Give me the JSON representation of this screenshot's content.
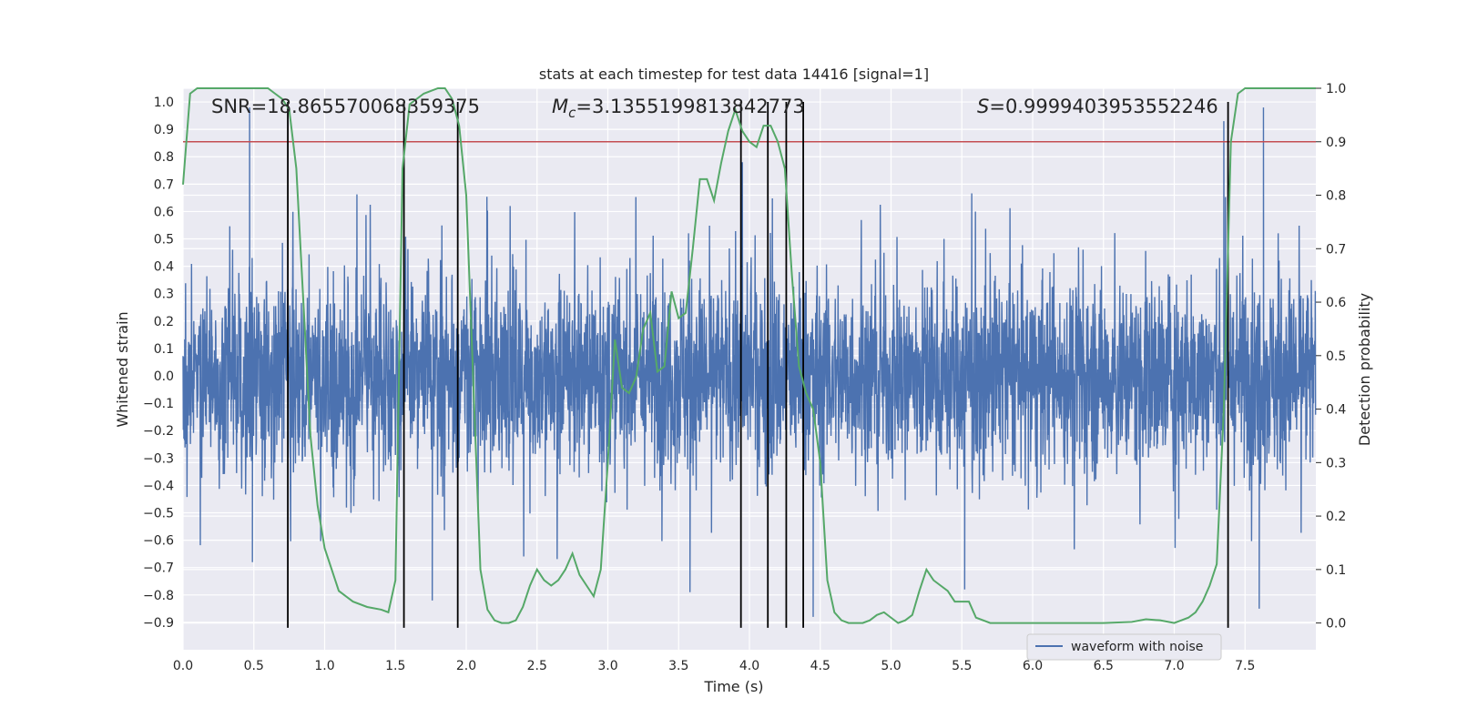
{
  "chart_data": {
    "type": "line",
    "title": "stats at each timestep for test data 14416 [signal=1]",
    "xlabel": "Time (s)",
    "ylabel": "Whitened strain",
    "y2label": "Detection probability",
    "xlim": [
      0,
      8.0
    ],
    "ylim": [
      -1.0,
      1.05
    ],
    "y2lim": [
      -0.05,
      1.0
    ],
    "xticks": [
      "0.0",
      "0.5",
      "1.0",
      "1.5",
      "2.0",
      "2.5",
      "3.0",
      "3.5",
      "4.0",
      "4.5",
      "5.0",
      "5.5",
      "6.0",
      "6.5",
      "7.0",
      "7.5"
    ],
    "yticks": [
      "-0.9",
      "-0.8",
      "-0.7",
      "-0.6",
      "-0.5",
      "-0.4",
      "-0.3",
      "-0.2",
      "-0.1",
      "0.0",
      "0.1",
      "0.2",
      "0.3",
      "0.4",
      "0.5",
      "0.6",
      "0.7",
      "0.8",
      "0.9",
      "1.0"
    ],
    "y2ticks": [
      "0.0",
      "0.1",
      "0.2",
      "0.3",
      "0.4",
      "0.5",
      "0.6",
      "0.7",
      "0.8",
      "0.9",
      "1.0"
    ],
    "annotations": {
      "snr": "SNR=18.865570068359375",
      "mc_symbol": "M",
      "mc_sub": "c",
      "mc_value": "=3.1355199813842773",
      "s_symbol": "S",
      "s_value": "=0.9999403953552246"
    },
    "threshold": 0.9,
    "event_lines_x": [
      0.74,
      1.56,
      1.94,
      3.94,
      4.13,
      4.26,
      4.38,
      7.38
    ],
    "event_lines_y_range": [
      -0.9,
      1.0
    ],
    "waveform": {
      "name": "waveform with noise",
      "color": "#4c72b0",
      "typical_amplitude": 0.42,
      "peaks": [
        {
          "x": 0.47,
          "y": 0.98
        },
        {
          "x": 0.49,
          "y": -0.68
        },
        {
          "x": 1.76,
          "y": -0.82
        },
        {
          "x": 3.58,
          "y": -0.79
        },
        {
          "x": 3.95,
          "y": 0.78
        },
        {
          "x": 4.45,
          "y": -0.88
        },
        {
          "x": 5.52,
          "y": -0.78
        },
        {
          "x": 7.35,
          "y": 0.93
        },
        {
          "x": 7.63,
          "y": 0.98
        },
        {
          "x": 7.6,
          "y": -0.85
        }
      ]
    },
    "probability": {
      "color": "#55a868",
      "x": [
        0.0,
        0.05,
        0.1,
        0.2,
        0.3,
        0.4,
        0.5,
        0.6,
        0.65,
        0.7,
        0.75,
        0.8,
        0.85,
        0.9,
        0.95,
        1.0,
        1.05,
        1.1,
        1.2,
        1.3,
        1.4,
        1.45,
        1.5,
        1.55,
        1.6,
        1.7,
        1.8,
        1.85,
        1.9,
        1.95,
        2.0,
        2.05,
        2.1,
        2.15,
        2.2,
        2.25,
        2.3,
        2.35,
        2.4,
        2.45,
        2.5,
        2.55,
        2.6,
        2.65,
        2.7,
        2.75,
        2.8,
        2.85,
        2.9,
        2.95,
        3.0,
        3.05,
        3.1,
        3.15,
        3.2,
        3.25,
        3.3,
        3.35,
        3.4,
        3.45,
        3.5,
        3.55,
        3.6,
        3.65,
        3.7,
        3.75,
        3.8,
        3.85,
        3.9,
        3.95,
        4.0,
        4.05,
        4.1,
        4.15,
        4.2,
        4.25,
        4.3,
        4.35,
        4.4,
        4.45,
        4.5,
        4.55,
        4.6,
        4.65,
        4.7,
        4.75,
        4.8,
        4.85,
        4.9,
        4.95,
        5.0,
        5.05,
        5.1,
        5.15,
        5.2,
        5.25,
        5.3,
        5.35,
        5.4,
        5.45,
        5.5,
        5.55,
        5.6,
        5.7,
        5.8,
        5.9,
        6.0,
        6.1,
        6.2,
        6.3,
        6.5,
        6.7,
        6.8,
        6.9,
        7.0,
        7.05,
        7.1,
        7.15,
        7.2,
        7.25,
        7.3,
        7.35,
        7.4,
        7.45,
        7.5,
        7.55,
        7.6,
        7.7,
        7.8,
        7.9,
        8.0
      ],
      "y": [
        0.82,
        0.99,
        1.0,
        1.0,
        1.0,
        1.0,
        1.0,
        1.0,
        0.99,
        0.98,
        0.96,
        0.85,
        0.6,
        0.35,
        0.22,
        0.14,
        0.1,
        0.06,
        0.04,
        0.03,
        0.025,
        0.02,
        0.08,
        0.85,
        0.97,
        0.99,
        1.0,
        1.0,
        0.98,
        0.93,
        0.8,
        0.45,
        0.1,
        0.025,
        0.005,
        0.0,
        0.0,
        0.005,
        0.03,
        0.07,
        0.1,
        0.08,
        0.07,
        0.08,
        0.1,
        0.13,
        0.09,
        0.07,
        0.05,
        0.1,
        0.3,
        0.53,
        0.44,
        0.43,
        0.46,
        0.55,
        0.58,
        0.47,
        0.48,
        0.62,
        0.57,
        0.58,
        0.7,
        0.83,
        0.83,
        0.79,
        0.86,
        0.92,
        0.96,
        0.92,
        0.9,
        0.89,
        0.93,
        0.93,
        0.9,
        0.85,
        0.65,
        0.48,
        0.43,
        0.4,
        0.3,
        0.08,
        0.02,
        0.005,
        0.0,
        0.0,
        0.0,
        0.005,
        0.015,
        0.02,
        0.01,
        0.0,
        0.005,
        0.015,
        0.06,
        0.1,
        0.08,
        0.07,
        0.06,
        0.04,
        0.04,
        0.04,
        0.01,
        0.0,
        0.0,
        0.0,
        0.0,
        0.0,
        0.0,
        0.0,
        0.0,
        0.002,
        0.007,
        0.005,
        0.0,
        0.005,
        0.01,
        0.02,
        0.04,
        0.07,
        0.11,
        0.4,
        0.9,
        0.99,
        1.0,
        1.0,
        1.0,
        1.0,
        1.0,
        1.0,
        1.0
      ]
    },
    "threshold_color": "#c44e52",
    "event_line_color": "#000000",
    "grid": true,
    "legend_position": "lower-right"
  }
}
